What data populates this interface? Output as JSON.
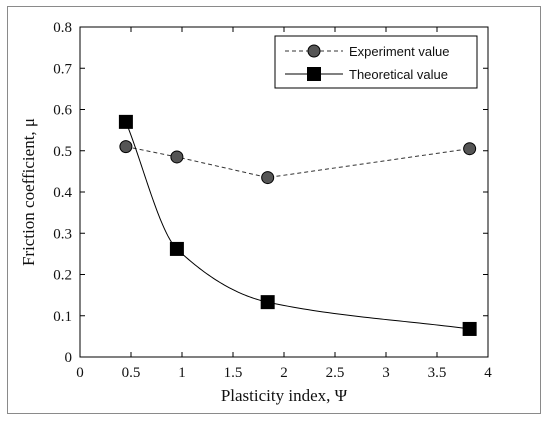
{
  "chart_data": {
    "type": "line",
    "xlabel": "Plasticity index, Ψ",
    "ylabel": "Friction coefficient, μ",
    "xlim": [
      0,
      4
    ],
    "ylim": [
      0,
      0.8
    ],
    "xticks": [
      "0",
      "0.5",
      "1",
      "1.5",
      "2",
      "2.5",
      "3",
      "3.5",
      "4"
    ],
    "yticks": [
      "0",
      "0.1",
      "0.2",
      "0.3",
      "0.4",
      "0.5",
      "0.6",
      "0.7",
      "0.8"
    ],
    "grid": false,
    "legend_position": "top-right",
    "series": [
      {
        "name": "Experiment value",
        "style": "dashed",
        "marker": "circle",
        "color": "#555555",
        "x": [
          0.45,
          0.95,
          1.84,
          3.82
        ],
        "y": [
          0.51,
          0.485,
          0.435,
          0.505
        ]
      },
      {
        "name": "Theoretical value",
        "style": "solid",
        "marker": "square",
        "color": "#000000",
        "x": [
          0.45,
          0.95,
          1.84,
          3.82
        ],
        "y": [
          0.57,
          0.262,
          0.133,
          0.068
        ]
      }
    ]
  }
}
